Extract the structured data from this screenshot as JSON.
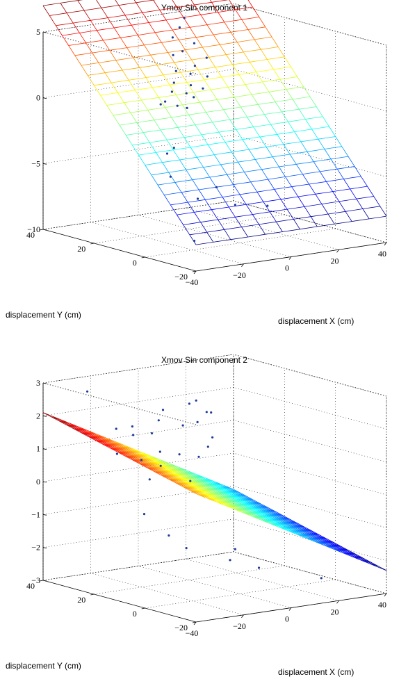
{
  "chart_data": [
    {
      "type": "surface",
      "title": "Ymov Sin component 1",
      "xlabel": "displacement X (cm)",
      "ylabel": "displacement Y (cm)",
      "zlabel": "",
      "xlim": [
        -40,
        40
      ],
      "ylim": [
        -20,
        40
      ],
      "zlim": [
        -10,
        5
      ],
      "xticks": [
        "−40",
        "−20",
        "0",
        "20",
        "40"
      ],
      "yticks": [
        "−20",
        "0",
        "20",
        "40"
      ],
      "zticks": [
        "−10",
        "−5",
        "0",
        "5"
      ],
      "grid": true,
      "colormap": "jet",
      "surface": {
        "x_range": [
          -40,
          40
        ],
        "y_range": [
          -20,
          40
        ],
        "a": 0.0,
        "b": 0.25,
        "c": -3.0,
        "grid_x": 11,
        "grid_y": 24
      },
      "points": [
        {
          "x": 15,
          "y": 36,
          "z": 4.8
        },
        {
          "x": 12,
          "y": 35,
          "z": 4.2
        },
        {
          "x": 8,
          "y": 34,
          "z": 3.6
        },
        {
          "x": 16,
          "y": 33,
          "z": 3.0
        },
        {
          "x": 10,
          "y": 32,
          "z": 2.6
        },
        {
          "x": 5,
          "y": 31,
          "z": 2.5
        },
        {
          "x": 18,
          "y": 30,
          "z": 2.0
        },
        {
          "x": 12,
          "y": 29,
          "z": 1.6
        },
        {
          "x": 3,
          "y": 28,
          "z": 1.5
        },
        {
          "x": 8,
          "y": 27,
          "z": 1.2
        },
        {
          "x": 14,
          "y": 26,
          "z": 0.9
        },
        {
          "x": 0,
          "y": 26,
          "z": 0.8
        },
        {
          "x": 6,
          "y": 25,
          "z": 0.5
        },
        {
          "x": -3,
          "y": 24,
          "z": 0.3
        },
        {
          "x": 10,
          "y": 24,
          "z": 0.2
        },
        {
          "x": 2,
          "y": 23,
          "z": 0.1
        },
        {
          "x": -8,
          "y": 22,
          "z": -0.2
        },
        {
          "x": 4,
          "y": 22,
          "z": -0.2
        },
        {
          "x": -5,
          "y": 20,
          "z": -0.5
        },
        {
          "x": -12,
          "y": 20,
          "z": -0.2
        },
        {
          "x": -2,
          "y": 19,
          "z": -0.7
        },
        {
          "x": -20,
          "y": 10,
          "z": -3.2
        },
        {
          "x": -15,
          "y": 12,
          "z": -3.0
        },
        {
          "x": -25,
          "y": 4,
          "z": -4.5
        },
        {
          "x": -10,
          "y": 0,
          "z": -5.5
        },
        {
          "x": -20,
          "y": -2,
          "z": -6.0
        },
        {
          "x": -30,
          "y": -10,
          "z": -8.5
        },
        {
          "x": 5,
          "y": -6,
          "z": -7.0
        },
        {
          "x": 30,
          "y": 30,
          "z": -9.5
        }
      ]
    },
    {
      "type": "surface",
      "title": "Xmov Sin component 2",
      "xlabel": "displacement X (cm)",
      "ylabel": "displacement Y (cm)",
      "zlabel": "",
      "xlim": [
        -40,
        40
      ],
      "ylim": [
        -20,
        40
      ],
      "zlim": [
        -3,
        3
      ],
      "xticks": [
        "−40",
        "−20",
        "0",
        "20",
        "40"
      ],
      "yticks": [
        "−20",
        "0",
        "20",
        "40"
      ],
      "zticks": [
        "−3",
        "−2",
        "−1",
        "0",
        "1",
        "2",
        "3"
      ],
      "grid": true,
      "colormap": "jet",
      "surface": {
        "x_range": [
          -40,
          40
        ],
        "y_range": [
          -20,
          40
        ],
        "a": -0.04,
        "b": 0.02,
        "c": -0.3,
        "grid_x": 21,
        "grid_y": 21
      },
      "points": [
        {
          "x": -30,
          "y": 32,
          "z": 2.8
        },
        {
          "x": -20,
          "y": 30,
          "z": 1.6
        },
        {
          "x": -15,
          "y": 28,
          "z": 1.4
        },
        {
          "x": -10,
          "y": 33,
          "z": 1.5
        },
        {
          "x": -5,
          "y": 30,
          "z": 1.3
        },
        {
          "x": 0,
          "y": 32,
          "z": 1.6
        },
        {
          "x": 5,
          "y": 35,
          "z": 1.8
        },
        {
          "x": 8,
          "y": 30,
          "z": 1.4
        },
        {
          "x": 12,
          "y": 28,
          "z": 1.5
        },
        {
          "x": 15,
          "y": 34,
          "z": 1.9
        },
        {
          "x": 18,
          "y": 30,
          "z": 1.7
        },
        {
          "x": 20,
          "y": 36,
          "z": 1.9
        },
        {
          "x": 22,
          "y": 32,
          "z": 1.6
        },
        {
          "x": -25,
          "y": 25,
          "z": 1.0
        },
        {
          "x": -18,
          "y": 22,
          "z": 0.8
        },
        {
          "x": -12,
          "y": 20,
          "z": 0.6
        },
        {
          "x": -8,
          "y": 24,
          "z": 0.9
        },
        {
          "x": -2,
          "y": 22,
          "z": 0.8
        },
        {
          "x": 4,
          "y": 20,
          "z": 0.7
        },
        {
          "x": 10,
          "y": 22,
          "z": 0.9
        },
        {
          "x": 14,
          "y": 24,
          "z": 1.1
        },
        {
          "x": -22,
          "y": 15,
          "z": 0.4
        },
        {
          "x": -6,
          "y": 14,
          "z": 0.2
        },
        {
          "x": -35,
          "y": 5,
          "z": -0.3
        },
        {
          "x": -30,
          "y": 0,
          "z": -0.9
        },
        {
          "x": -28,
          "y": -5,
          "z": -1.2
        },
        {
          "x": -15,
          "y": -10,
          "z": -1.6
        },
        {
          "x": -5,
          "y": -12,
          "z": -1.9
        },
        {
          "x": 30,
          "y": 30,
          "z": -2.6
        },
        {
          "x": 18,
          "y": -15,
          "z": -2.4
        }
      ]
    }
  ]
}
